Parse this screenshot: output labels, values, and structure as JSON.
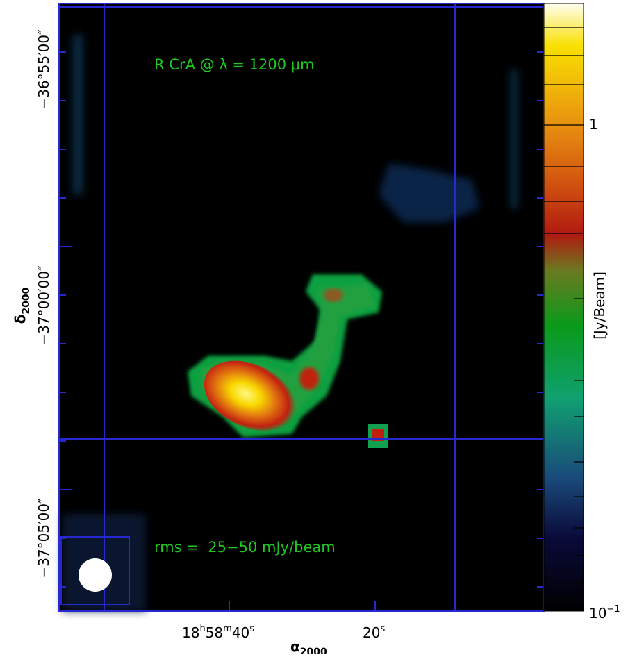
{
  "annotations": {
    "title": "R CrA @ λ = 1200 μm",
    "rms": "rms =  25−50 mJy/beam"
  },
  "axes": {
    "y_label": {
      "symbol": "δ",
      "sub": "2000"
    },
    "x_label": {
      "symbol": "α",
      "sub": "2000"
    },
    "y_ticks": [
      "−36°55′00″",
      "−37°00′00″",
      "−37°05′00″"
    ],
    "x_ticks": [
      [
        "18",
        "h",
        "58",
        "m",
        "40",
        "s"
      ],
      [
        "20",
        "s"
      ]
    ]
  },
  "colorbar": {
    "label": "[Jy/Beam]",
    "ticks": [
      "1",
      {
        "base": "10",
        "exp": "−1"
      }
    ]
  }
}
